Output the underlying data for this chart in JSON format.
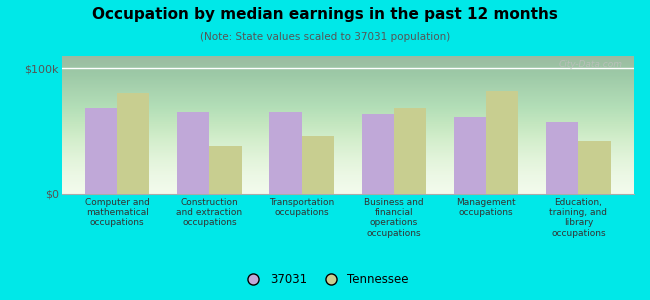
{
  "title": "Occupation by median earnings in the past 12 months",
  "subtitle": "(Note: State values scaled to 37031 population)",
  "categories": [
    "Computer and\nmathematical\noccupations",
    "Construction\nand extraction\noccupations",
    "Transportation\noccupations",
    "Business and\nfinancial\noperations\noccupations",
    "Management\noccupations",
    "Education,\ntraining, and\nlibrary\noccupations"
  ],
  "values_37031": [
    68000,
    65000,
    65000,
    63000,
    61000,
    57000
  ],
  "values_tennessee": [
    80000,
    38000,
    46000,
    68000,
    82000,
    42000
  ],
  "color_37031": "#c0a8d8",
  "color_tennessee": "#c8ce90",
  "ylim": [
    0,
    110000
  ],
  "ytick_vals": [
    0,
    100000
  ],
  "ytick_labels": [
    "$0",
    "$100k"
  ],
  "bg_top": "#d8edc8",
  "bg_bottom": "#f0fae8",
  "outer_background": "#00e8e8",
  "legend_label_37031": "37031",
  "legend_label_tennessee": "Tennessee",
  "bar_width": 0.35,
  "watermark": "City-Data.com"
}
